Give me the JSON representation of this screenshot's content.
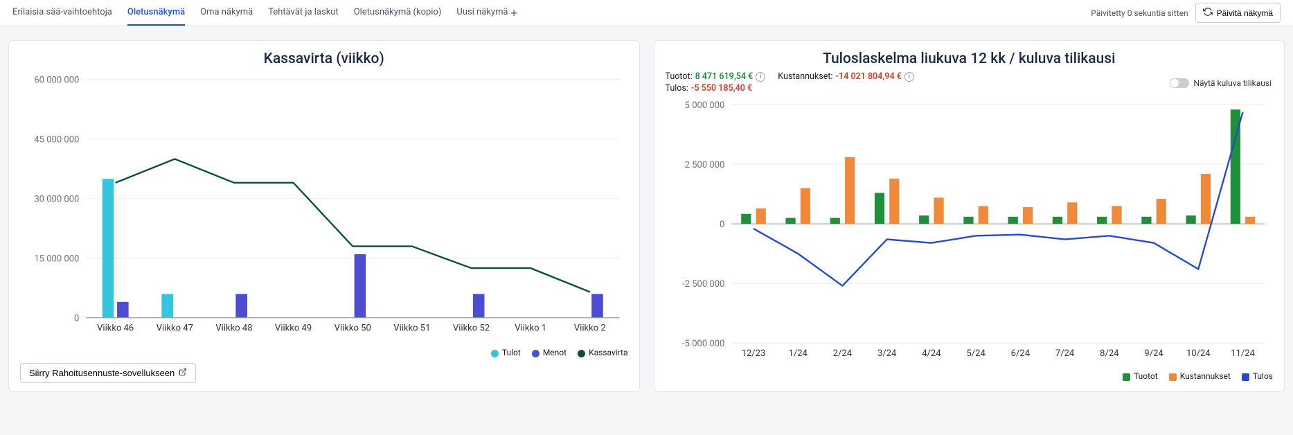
{
  "tabs": [
    {
      "label": "Erilaisia sää-vaihtoehtoja",
      "active": false
    },
    {
      "label": "Oletusnäkymä",
      "active": true
    },
    {
      "label": "Oma näkymä",
      "active": false
    },
    {
      "label": "Tehtävät ja laskut",
      "active": false
    },
    {
      "label": "Oletusnäkymä (kopio)",
      "active": false
    },
    {
      "label": "Uusi näkymä",
      "active": false
    }
  ],
  "header": {
    "updated_text": "Päivitetty 0 sekuntia sitten",
    "refresh_label": "Päivitä näkymä"
  },
  "cashflow": {
    "title": "Kassavirta (viikko)",
    "type": "bar+line",
    "y_ticks": [
      0,
      15000000,
      30000000,
      45000000,
      60000000
    ],
    "y_tick_labels": [
      "0",
      "15 000 000",
      "30 000 000",
      "45 000 000",
      "60 000 000"
    ],
    "categories": [
      "Viikko 46",
      "Viikko 47",
      "Viikko 48",
      "Viikko 49",
      "Viikko 50",
      "Viikko 51",
      "Viikko 52",
      "Viikko 1",
      "Viikko 2"
    ],
    "tulot": [
      35000000,
      6000000,
      0,
      0,
      0,
      0,
      0,
      0,
      0
    ],
    "menot": [
      4000000,
      0,
      6000000,
      0,
      16000000,
      0,
      6000000,
      0,
      6000000
    ],
    "kassavirta": [
      34000000,
      40000000,
      34000000,
      34000000,
      18000000,
      18000000,
      12500000,
      12500000,
      6500000
    ],
    "colors": {
      "tulot": "#35c6dd",
      "menot": "#4d4dd1",
      "kassavirta": "#0c4f3c",
      "axis": "#6b7280",
      "grid": "#eceff3"
    },
    "legend": [
      {
        "label": "Tulot",
        "color": "#35c6dd",
        "shape": "circle"
      },
      {
        "label": "Menot",
        "color": "#4d4dd1",
        "shape": "circle"
      },
      {
        "label": "Kassavirta",
        "color": "#0c4f3c",
        "shape": "circle"
      }
    ],
    "button_label": "Siirry Rahoitusennuste-sovellukseen"
  },
  "income": {
    "title": "Tuloslaskelma liukuva 12 kk / kuluva tilikausi",
    "summary": {
      "tuotot_label": "Tuotot:",
      "tuotot_value": "8 471 619,54 €",
      "tuotot_color": "#1f8f3b",
      "kust_label": "Kustannukset:",
      "kust_value": "-14 021 804,94 €",
      "kust_color": "#d23a2a",
      "tulos_label": "Tulos:",
      "tulos_value": "-5 550 185,40 €",
      "tulos_color": "#d23a2a"
    },
    "toggle_label": "Näytä kuluva tilikausi",
    "type": "bar+line",
    "y_ticks": [
      -5000000,
      -2500000,
      0,
      2500000,
      5000000
    ],
    "y_tick_labels": [
      "-5 000 000",
      "-2 500 000",
      "0",
      "2 500 000",
      "5 000 000"
    ],
    "categories": [
      "12/23",
      "1/24",
      "2/24",
      "3/24",
      "4/24",
      "5/24",
      "6/24",
      "7/24",
      "8/24",
      "9/24",
      "10/24",
      "11/24"
    ],
    "tuotot": [
      420000,
      250000,
      250000,
      1300000,
      350000,
      300000,
      300000,
      300000,
      300000,
      300000,
      350000,
      4800000
    ],
    "kustannukset": [
      650000,
      1500000,
      2800000,
      1900000,
      1100000,
      750000,
      700000,
      900000,
      750000,
      1050000,
      2100000,
      300000
    ],
    "tulos": [
      -200000,
      -1250000,
      -2600000,
      -650000,
      -800000,
      -500000,
      -450000,
      -650000,
      -500000,
      -800000,
      -1900000,
      4700000
    ],
    "colors": {
      "tuotot": "#1f8f3b",
      "kustannukset": "#f08a3a",
      "tulos": "#2749cc",
      "axis": "#6b7280",
      "grid": "#eceff3"
    },
    "legend": [
      {
        "label": "Tuotot",
        "color": "#1f8f3b",
        "shape": "square"
      },
      {
        "label": "Kustannukset",
        "color": "#f08a3a",
        "shape": "square"
      },
      {
        "label": "Tulos",
        "color": "#2749cc",
        "shape": "square"
      }
    ]
  }
}
